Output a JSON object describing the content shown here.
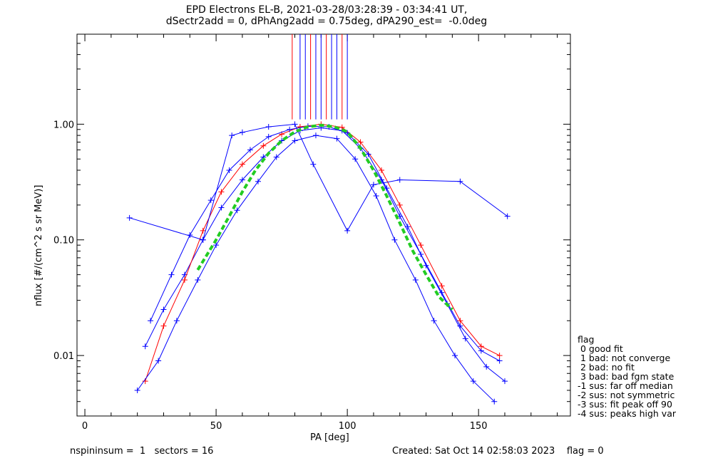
{
  "title_line1": "EPD Electrons EL-B, 2021-03-28/03:28:39 - 03:34:41 UT,",
  "title_line2": "dSectr2add = 0, dPhAng2add = 0.75deg, dPA290_est=  -0.0deg",
  "footer_left": "nspininsum =  1   sectors = 16",
  "footer_right": "Created: Sat Oct 14 02:58:03 2023    flag = 0",
  "legend": [
    "flag",
    " 0 good fit",
    " 1 bad: not converge",
    " 2 bad: no fit",
    " 3 bad: bad fgm state",
    "-1 sus: far off median",
    "-2 sus: not symmetric",
    "-3 sus: fit peak off 90",
    "-4 sus: peaks high var"
  ],
  "chart_data": {
    "type": "line",
    "xlabel": "PA [deg]",
    "ylabel": "nflux [#/(cm^2 s sr MeV)]",
    "xlim": [
      -3,
      185
    ],
    "ylim": [
      0.003,
      6.0
    ],
    "yscale": "log",
    "xticks": [
      0,
      50,
      100,
      150
    ],
    "xtick_labels": [
      "0",
      "50",
      "100",
      "150"
    ],
    "yticks": [
      0.01,
      0.1,
      1.0
    ],
    "ytick_labels": [
      "0.01",
      "0.10",
      "1.00"
    ],
    "colors": {
      "blue": "#0000ff",
      "red": "#ff0000",
      "fit": "#22cc22"
    },
    "series": [
      {
        "color": "blue",
        "marker": "+",
        "x": [
          23,
          30,
          38,
          45,
          52,
          60,
          68,
          75,
          82,
          90,
          98,
          105,
          113,
          120,
          128,
          136,
          143,
          151,
          158
        ],
        "y": [
          0.012,
          0.025,
          0.05,
          0.1,
          0.19,
          0.33,
          0.52,
          0.72,
          0.88,
          0.93,
          0.88,
          0.62,
          0.33,
          0.16,
          0.075,
          0.035,
          0.018,
          0.011,
          0.009
        ]
      },
      {
        "color": "red",
        "marker": "+",
        "x": [
          23,
          30,
          38,
          45,
          52,
          60,
          68,
          75,
          82,
          90,
          98,
          105,
          113,
          120,
          128,
          136,
          143,
          151,
          158
        ],
        "y": [
          0.006,
          0.018,
          0.045,
          0.12,
          0.26,
          0.45,
          0.65,
          0.82,
          0.95,
          1.0,
          0.94,
          0.7,
          0.4,
          0.2,
          0.09,
          0.04,
          0.02,
          0.012,
          0.01
        ]
      },
      {
        "color": "blue",
        "marker": "+",
        "x": [
          20,
          28,
          35,
          43,
          50,
          58,
          66,
          73,
          80,
          88,
          96,
          103,
          111,
          118,
          126,
          133,
          141,
          148,
          156
        ],
        "y": [
          0.005,
          0.009,
          0.02,
          0.045,
          0.09,
          0.18,
          0.32,
          0.52,
          0.72,
          0.8,
          0.75,
          0.5,
          0.24,
          0.1,
          0.045,
          0.02,
          0.01,
          0.006,
          0.004
        ]
      },
      {
        "color": "blue",
        "marker": "+",
        "x": [
          17,
          45,
          56,
          60,
          70,
          80,
          87,
          100,
          110,
          120,
          143,
          161
        ],
        "y": [
          0.155,
          0.1,
          0.8,
          0.85,
          0.95,
          1.0,
          0.45,
          0.12,
          0.3,
          0.33,
          0.32,
          0.16
        ]
      },
      {
        "color": "blue",
        "marker": "+",
        "x": [
          25,
          33,
          40,
          48,
          55,
          63,
          70,
          78,
          85,
          93,
          100,
          108,
          115,
          123,
          130,
          138,
          145,
          153,
          160
        ],
        "y": [
          0.02,
          0.05,
          0.11,
          0.22,
          0.4,
          0.6,
          0.78,
          0.9,
          0.96,
          0.95,
          0.84,
          0.55,
          0.28,
          0.13,
          0.06,
          0.028,
          0.014,
          0.008,
          0.006
        ]
      }
    ],
    "fit": {
      "name": "fit",
      "color": "fit",
      "x": [
        43,
        50,
        55,
        60,
        65,
        70,
        75,
        80,
        85,
        90,
        95,
        100,
        105,
        110,
        115,
        120,
        125,
        130,
        135,
        140
      ],
      "y": [
        0.055,
        0.1,
        0.16,
        0.26,
        0.4,
        0.56,
        0.72,
        0.86,
        0.95,
        0.98,
        0.95,
        0.86,
        0.62,
        0.4,
        0.24,
        0.14,
        0.08,
        0.05,
        0.032,
        0.025
      ]
    },
    "saturated_columns_x": [
      79,
      82,
      84,
      86,
      88,
      90,
      92,
      94,
      96,
      98,
      100
    ]
  }
}
